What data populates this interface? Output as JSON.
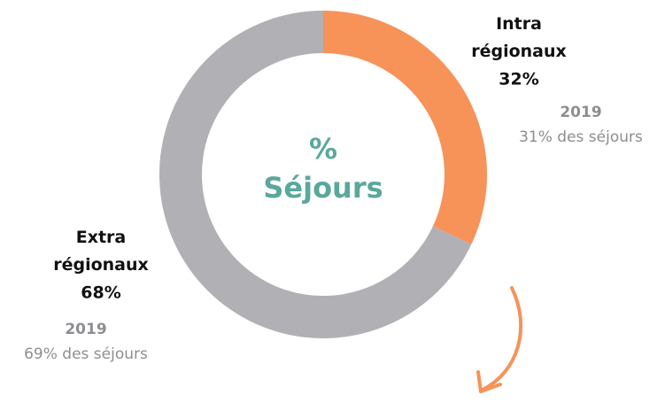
{
  "chart_data": {
    "type": "donut",
    "center_label": "% Séjours",
    "categories": [
      "Intra régionaux",
      "Extra régionaux"
    ],
    "values": [
      32,
      68
    ],
    "value_labels": [
      "32%",
      "68%"
    ],
    "colors": [
      "#f79259",
      "#b1b0b5"
    ],
    "annotations": [
      {
        "year": "2019",
        "text": "31% des séjours"
      },
      {
        "year": "2019",
        "text": "69% des séjours"
      }
    ]
  }
}
